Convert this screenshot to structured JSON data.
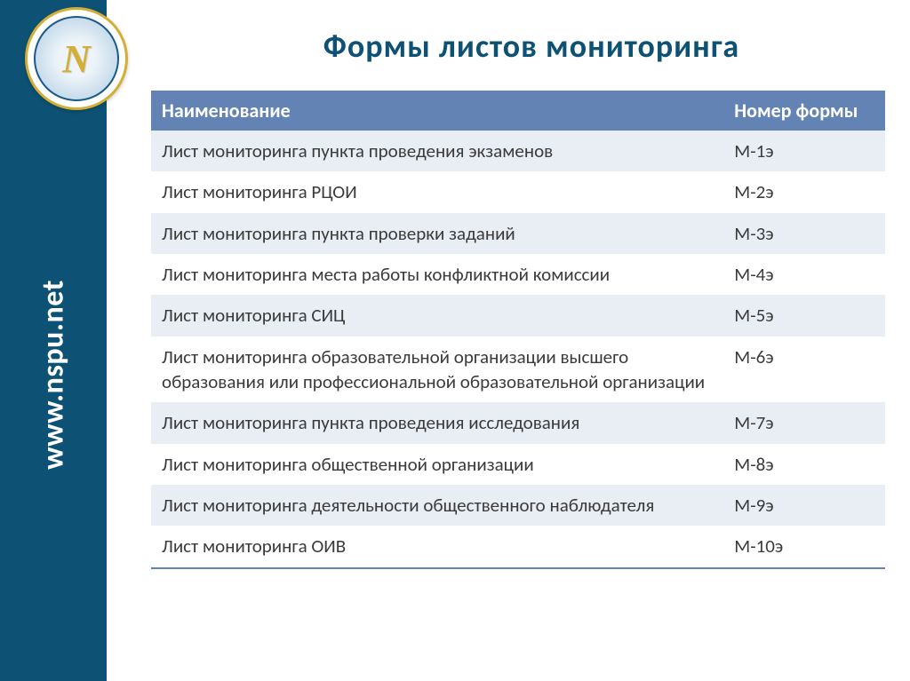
{
  "sidebar": {
    "url": "www.nspu.net",
    "logo_monogram": "N",
    "colors": {
      "sidebar_bg": "#0d5275",
      "url_text": "#ffffff",
      "logo_gold": "#d4af37"
    }
  },
  "title": "Формы  листов  мониторинга",
  "table": {
    "columns": [
      "Наименование",
      "Номер формы"
    ],
    "rows": [
      [
        "Лист мониторинга пункта проведения экзаменов",
        "М-1э"
      ],
      [
        "Лист мониторинга РЦОИ",
        "М-2э"
      ],
      [
        "Лист мониторинга пункта проверки заданий",
        "М-3э"
      ],
      [
        "Лист мониторинга места работы конфликтной комиссии",
        "М-4э"
      ],
      [
        "Лист мониторинга СИЦ",
        "М-5э"
      ],
      [
        "Лист мониторинга образовательной организации высшего образования или профессиональной образовательной организации",
        "М-6э"
      ],
      [
        "Лист мониторинга пункта проведения исследования",
        "М-7э"
      ],
      [
        "Лист мониторинга общественной организации",
        "М-8э"
      ],
      [
        "Лист мониторинга деятельности общественного наблюдателя",
        "М-9э"
      ],
      [
        "Лист мониторинга ОИВ",
        "М-10э"
      ]
    ],
    "style": {
      "header_bg": "#6283b3",
      "header_text": "#ffffff",
      "row_odd_bg": "#e9edf4",
      "row_even_bg": "#ffffff",
      "cell_text": "#3b3b3b",
      "font_size": 21,
      "header_font_size": 22
    }
  },
  "colors": {
    "page_bg": "#ffffff",
    "title_color": "#0d5275"
  },
  "typography": {
    "title_fontsize": 36,
    "title_weight": "bold",
    "url_fontsize": 34
  }
}
